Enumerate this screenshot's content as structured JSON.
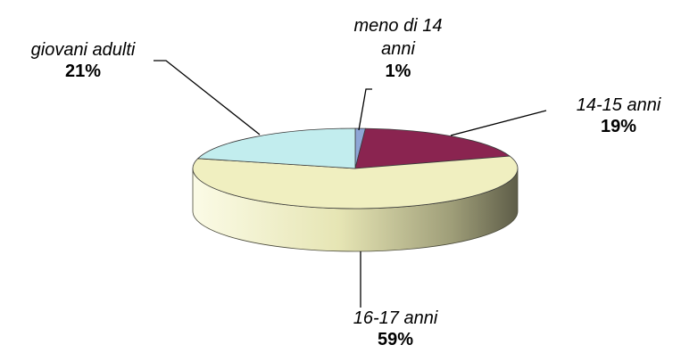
{
  "chart_data": {
    "type": "pie",
    "style": "3d",
    "categories": [
      "meno di 14 anni",
      "14-15 anni",
      "16-17 anni",
      "giovani adulti"
    ],
    "values": [
      1,
      19,
      59,
      21
    ],
    "labels": [
      {
        "name_lines": [
          "meno di 14",
          "anni"
        ],
        "percent": "1%"
      },
      {
        "name_lines": [
          "14-15 anni"
        ],
        "percent": "19%"
      },
      {
        "name_lines": [
          "16-17 anni"
        ],
        "percent": "59%"
      },
      {
        "name_lines": [
          "giovani adulti"
        ],
        "percent": "21%"
      }
    ],
    "colors": [
      "#8EA6D6",
      "#8A2450",
      "#F0EFC0",
      "#C2EDEE"
    ],
    "legend": "none",
    "title": ""
  }
}
